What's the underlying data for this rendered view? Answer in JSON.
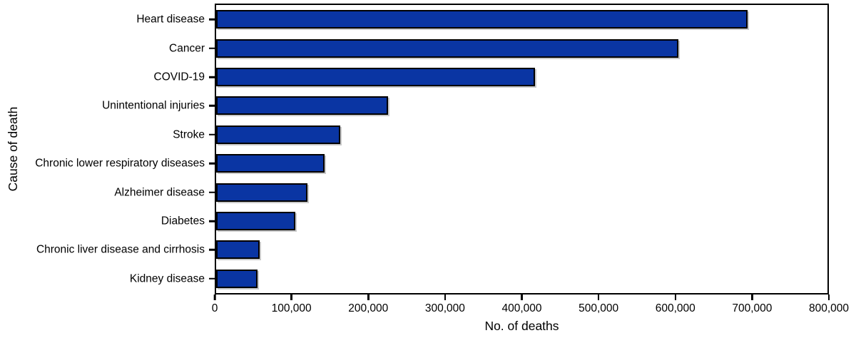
{
  "chart_data": {
    "type": "bar",
    "orientation": "horizontal",
    "title": "",
    "xlabel": "No. of deaths",
    "ylabel": "Cause of death",
    "xlim": [
      0,
      800000
    ],
    "grid": false,
    "legend": false,
    "categories": [
      "Heart disease",
      "Cancer",
      "COVID-19",
      "Unintentional injuries",
      "Stroke",
      "Chronic lower respiratory diseases",
      "Alzheimer disease",
      "Diabetes",
      "Chronic liver disease and cirrhosis",
      "Kidney disease"
    ],
    "values": [
      695547,
      605213,
      416893,
      224935,
      162890,
      142342,
      119399,
      103294,
      56585,
      54358
    ],
    "x_ticks": [
      0,
      100000,
      200000,
      300000,
      400000,
      500000,
      600000,
      700000,
      800000
    ],
    "x_tick_labels": [
      "0",
      "100,000",
      "200,000",
      "300,000",
      "400,000",
      "500,000",
      "600,000",
      "700,000",
      "800,000"
    ],
    "bar_color": "#0a35a3",
    "bar_border_color": "#000000",
    "axis_color": "#000000"
  }
}
